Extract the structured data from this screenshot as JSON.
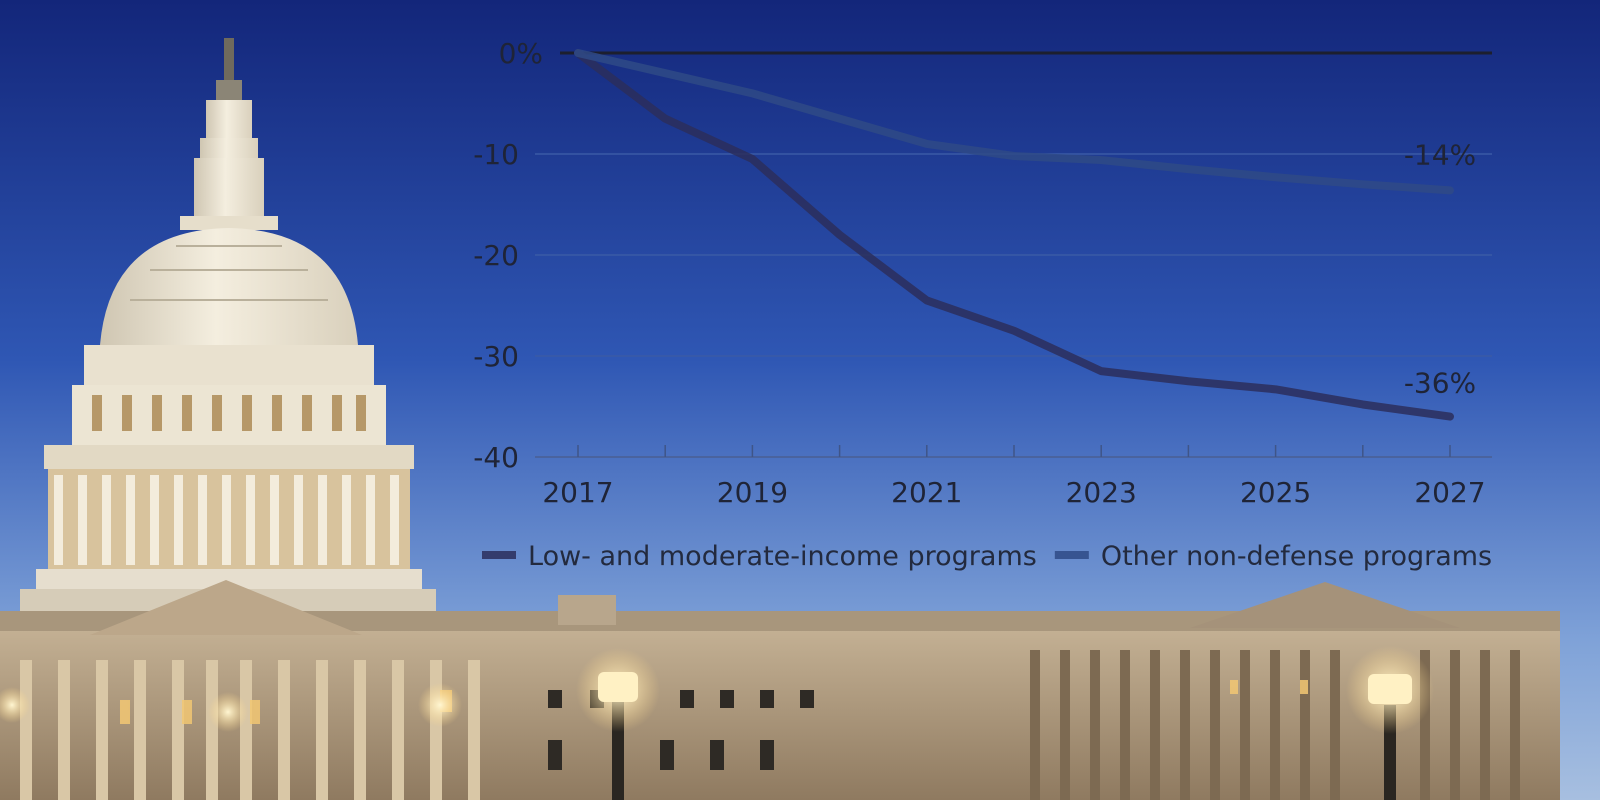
{
  "chart_data": {
    "type": "line",
    "x": [
      2017,
      2018,
      2019,
      2020,
      2021,
      2022,
      2023,
      2024,
      2025,
      2026,
      2027
    ],
    "series": [
      {
        "name": "Low- and moderate-income programs",
        "color": "#2c2e5c",
        "values": [
          0,
          -6.5,
          -10.5,
          -18,
          -24.5,
          -27.5,
          -31.5,
          -32.5,
          -33.3,
          -34.8,
          -36
        ],
        "end_label": "-36%"
      },
      {
        "name": "Other non-defense programs",
        "color": "#2f4a86",
        "values": [
          0,
          -2,
          -4,
          -6.5,
          -9,
          -10.2,
          -10.6,
          -11.5,
          -12.3,
          -13,
          -13.6
        ],
        "end_label": "-14%"
      }
    ],
    "x_tick_labels": [
      "2017",
      "2019",
      "2021",
      "2023",
      "2025",
      "2027"
    ],
    "y_ticks": [
      0,
      -10,
      -20,
      -30,
      -40
    ],
    "y_tick_labels": [
      "0%",
      "-10",
      "-20",
      "-30",
      "-40"
    ],
    "ylim": [
      -40,
      0
    ],
    "xlim": [
      2017,
      2027
    ],
    "grid": true,
    "legend_position": "bottom"
  },
  "colors": {
    "sky_top": "#13267a",
    "sky_mid": "#2f57b4",
    "sky_bottom": "#8fb0dc",
    "building_stone": "#bfa98c",
    "building_shadow": "#6f5b45",
    "dome_light": "#efe7d6",
    "lamp_glow": "#ffe7a8"
  },
  "background": {
    "subject": "capitol-building-at-dusk"
  }
}
